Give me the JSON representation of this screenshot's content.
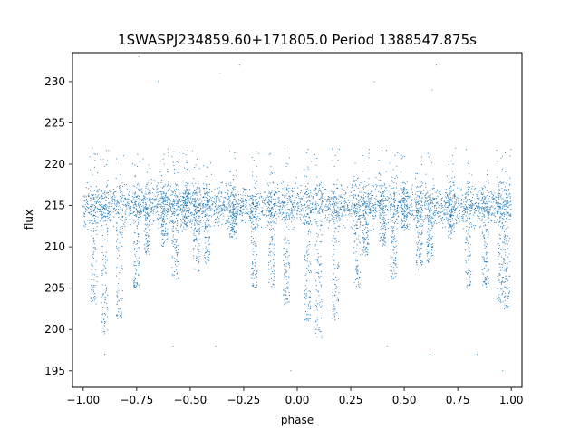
{
  "chart_data": {
    "type": "scatter",
    "title": "1SWASPJ234859.60+171805.0 Period 1388547.875s",
    "xlabel": "phase",
    "ylabel": "flux",
    "xlim": [
      -1.05,
      1.05
    ],
    "ylim": [
      193,
      233.5
    ],
    "x_ticks": [
      -1.0,
      -0.75,
      -0.5,
      -0.25,
      0.0,
      0.25,
      0.5,
      0.75,
      1.0
    ],
    "x_tick_labels": [
      "−1.00",
      "−0.75",
      "−0.50",
      "−0.25",
      "0.00",
      "0.25",
      "0.50",
      "0.75",
      "1.00"
    ],
    "y_ticks": [
      195,
      200,
      205,
      210,
      215,
      220,
      225,
      230
    ],
    "y_tick_labels": [
      "195",
      "200",
      "205",
      "210",
      "215",
      "220",
      "225",
      "230"
    ],
    "grid": false,
    "marker_color": "#1f77b4",
    "series": [
      {
        "description_of_points": "phase-folded light curve, mirrored over phase -1 to 1; baseline flux near 215 with scatter 212-218, with many dips reaching 200-210",
        "baseline": 215,
        "scatter_band": [
          212,
          218
        ],
        "dip_groups": [
          {
            "x": -0.95,
            "min": 203
          },
          {
            "x": -0.9,
            "min": 199
          },
          {
            "x": -0.83,
            "min": 201
          },
          {
            "x": -0.75,
            "min": 205
          },
          {
            "x": -0.7,
            "min": 209
          },
          {
            "x": -0.62,
            "min": 210
          },
          {
            "x": -0.57,
            "min": 206
          },
          {
            "x": -0.52,
            "min": 212
          },
          {
            "x": -0.47,
            "min": 207
          },
          {
            "x": -0.42,
            "min": 208
          },
          {
            "x": -0.3,
            "min": 211
          },
          {
            "x": -0.2,
            "min": 205
          },
          {
            "x": -0.12,
            "min": 205
          },
          {
            "x": -0.05,
            "min": 203
          },
          {
            "x": 0.05,
            "min": 201
          },
          {
            "x": 0.1,
            "min": 199
          },
          {
            "x": 0.18,
            "min": 201
          },
          {
            "x": 0.28,
            "min": 205
          },
          {
            "x": 0.32,
            "min": 209
          },
          {
            "x": 0.4,
            "min": 210
          },
          {
            "x": 0.45,
            "min": 206
          },
          {
            "x": 0.5,
            "min": 212
          },
          {
            "x": 0.57,
            "min": 207
          },
          {
            "x": 0.62,
            "min": 208
          },
          {
            "x": 0.72,
            "min": 211
          },
          {
            "x": 0.8,
            "min": 205
          },
          {
            "x": 0.88,
            "min": 205
          },
          {
            "x": 0.95,
            "min": 203
          },
          {
            "x": 0.98,
            "min": 202
          }
        ],
        "outliers": [
          {
            "x": -0.74,
            "y": 233
          },
          {
            "x": -0.65,
            "y": 230
          },
          {
            "x": -0.36,
            "y": 231
          },
          {
            "x": -0.27,
            "y": 232
          },
          {
            "x": 0.36,
            "y": 230
          },
          {
            "x": 0.65,
            "y": 232
          },
          {
            "x": 0.63,
            "y": 229
          },
          {
            "x": 0.42,
            "y": 198
          },
          {
            "x": -0.58,
            "y": 198
          },
          {
            "x": -0.38,
            "y": 198
          },
          {
            "x": -0.03,
            "y": 195
          },
          {
            "x": 0.96,
            "y": 195
          },
          {
            "x": 0.84,
            "y": 197
          },
          {
            "x": 0.62,
            "y": 197
          },
          {
            "x": -0.9,
            "y": 197
          }
        ]
      }
    ]
  }
}
